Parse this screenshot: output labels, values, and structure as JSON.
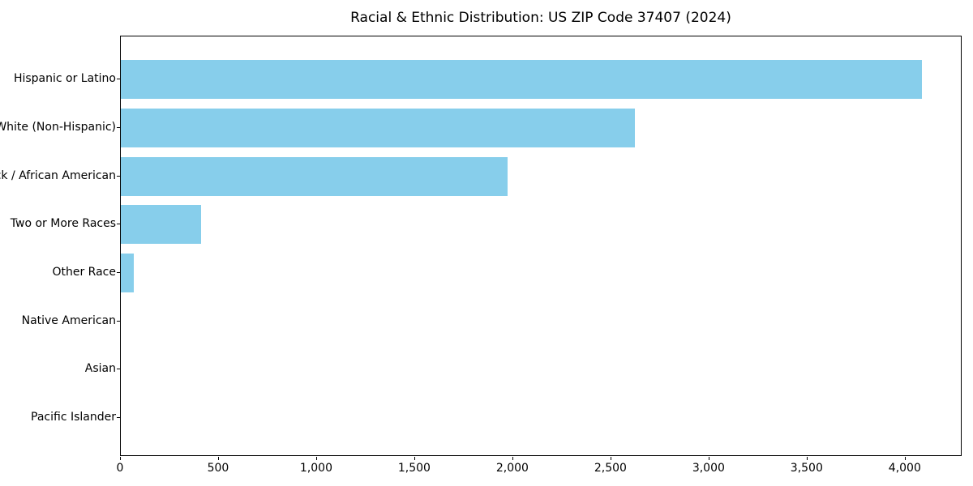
{
  "chart_data": {
    "type": "bar",
    "orientation": "horizontal",
    "title": "Racial & Ethnic Distribution: US ZIP Code 37407 (2024)",
    "categories": [
      "Hispanic or Latino",
      "White (Non-Hispanic)",
      "Black / African American",
      "Two or More Races",
      "Other Race",
      "Native American",
      "Asian",
      "Pacific Islander"
    ],
    "values": [
      4085,
      2620,
      1970,
      410,
      65,
      0,
      0,
      0
    ],
    "xlabel": "",
    "ylabel": "",
    "xlim": [
      0,
      4290
    ],
    "x_ticks": [
      0,
      500,
      1000,
      1500,
      2000,
      2500,
      3000,
      3500,
      4000
    ],
    "x_tick_labels": [
      "0",
      "500",
      "1,000",
      "1,500",
      "2,000",
      "2,500",
      "3,000",
      "3,500",
      "4,000"
    ],
    "bar_color": "#87CEEB",
    "axis_color": "#000000",
    "background_color": "#FFFFFF",
    "grid": false,
    "legend": null
  }
}
